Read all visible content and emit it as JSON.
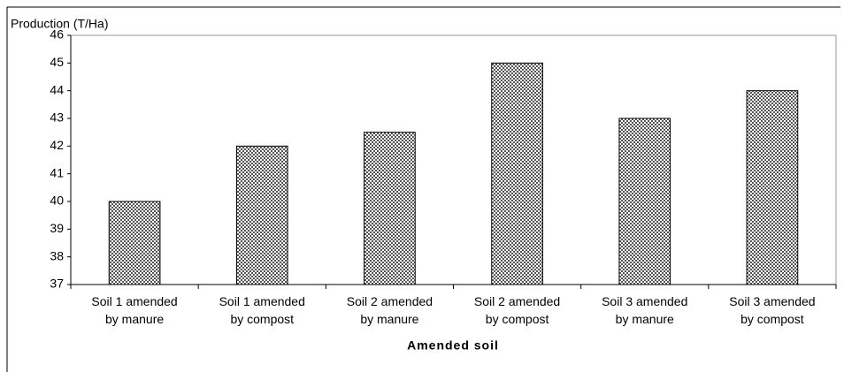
{
  "chart_data": {
    "type": "bar",
    "title": "Production (T/Ha)",
    "x_label": "Amended soil",
    "categories": [
      "Soil 1 amended by manure",
      "Soil 1 amended by compost",
      "Soil 2 amended by manure",
      "Soil 2 amended by compost",
      "Soil 3 amended by manure",
      "Soil 3 amended by compost"
    ],
    "values": [
      40,
      42,
      42.5,
      45,
      43,
      44
    ],
    "color": "#8c8c8c",
    "ylim": [
      37,
      46
    ],
    "yticks": [
      37,
      38,
      39,
      40,
      41,
      42,
      43,
      44,
      45,
      46
    ],
    "grid": false
  }
}
